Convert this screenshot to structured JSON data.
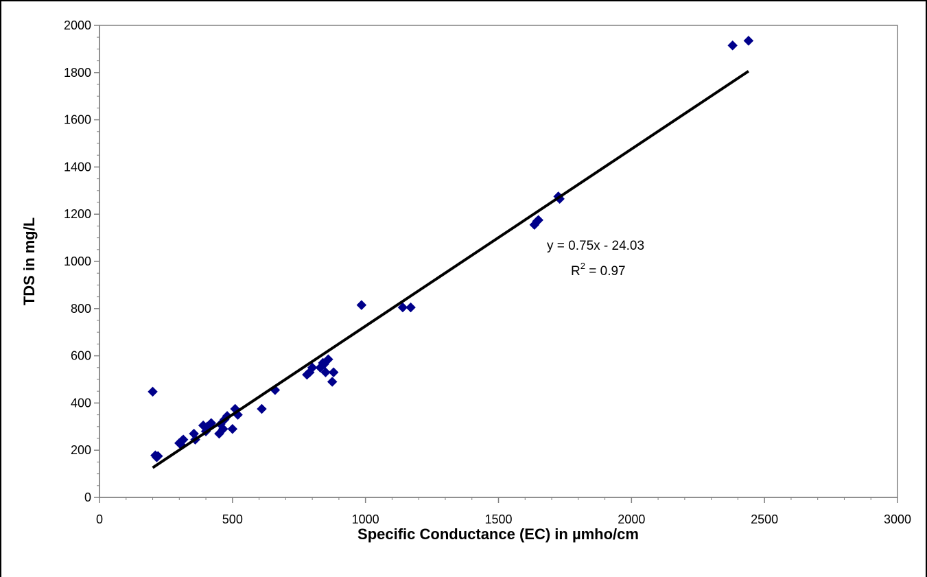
{
  "chart_data": {
    "type": "scatter",
    "xlabel": "Specific Conductance (EC) in µmho/cm",
    "ylabel": "TDS in mg/L",
    "xlim": [
      0,
      3000
    ],
    "ylim": [
      0,
      2000
    ],
    "x_ticks": [
      0,
      500,
      1000,
      1500,
      2000,
      2500,
      3000
    ],
    "y_ticks": [
      0,
      200,
      400,
      600,
      800,
      1000,
      1200,
      1400,
      1600,
      1800,
      2000
    ],
    "grid": false,
    "legend": "none",
    "marker_color": "#00008B",
    "trendline_color": "#000000",
    "points": [
      [
        200,
        448
      ],
      [
        210,
        178
      ],
      [
        215,
        170
      ],
      [
        220,
        175
      ],
      [
        300,
        230
      ],
      [
        305,
        225
      ],
      [
        310,
        240
      ],
      [
        315,
        245
      ],
      [
        355,
        270
      ],
      [
        360,
        245
      ],
      [
        390,
        305
      ],
      [
        400,
        280
      ],
      [
        405,
        300
      ],
      [
        420,
        315
      ],
      [
        450,
        270
      ],
      [
        455,
        310
      ],
      [
        465,
        290
      ],
      [
        470,
        330
      ],
      [
        480,
        345
      ],
      [
        500,
        290
      ],
      [
        510,
        375
      ],
      [
        520,
        350
      ],
      [
        610,
        375
      ],
      [
        660,
        455
      ],
      [
        780,
        520
      ],
      [
        790,
        530
      ],
      [
        800,
        550
      ],
      [
        830,
        550
      ],
      [
        840,
        570
      ],
      [
        845,
        565
      ],
      [
        850,
        530
      ],
      [
        860,
        585
      ],
      [
        875,
        490
      ],
      [
        880,
        530
      ],
      [
        985,
        815
      ],
      [
        1140,
        805
      ],
      [
        1170,
        805
      ],
      [
        1635,
        1155
      ],
      [
        1645,
        1170
      ],
      [
        1650,
        1175
      ],
      [
        1725,
        1275
      ],
      [
        1730,
        1265
      ],
      [
        2380,
        1915
      ],
      [
        2440,
        1935
      ]
    ],
    "trendline": {
      "type": "linear",
      "slope": 0.75,
      "intercept": -24.03,
      "x_range": [
        200,
        2440
      ],
      "equation_label": "y = 0.75x - 24.03",
      "r2_label_prefix": "R",
      "r2_label_sup": "2",
      "r2_label_suffix": " = 0.97"
    }
  }
}
